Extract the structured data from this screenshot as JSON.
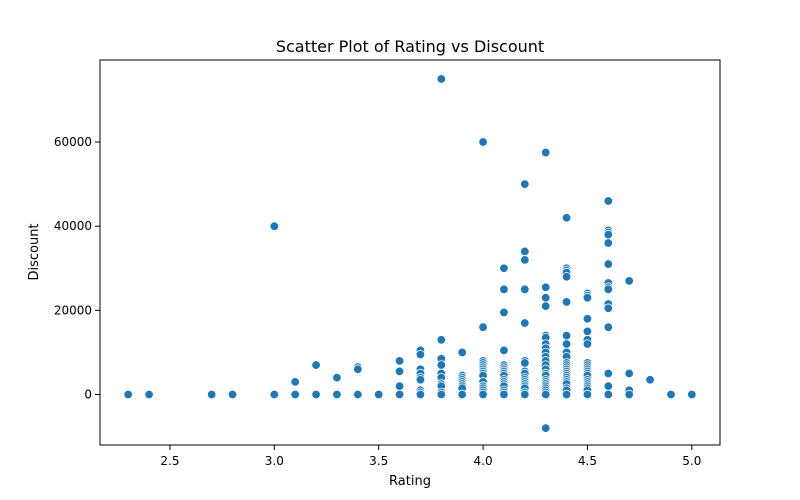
{
  "chart_data": {
    "type": "scatter",
    "title": "Scatter Plot of Rating vs Discount",
    "xlabel": "Rating",
    "ylabel": "Discount",
    "xlim": [
      2.165,
      5.135
    ],
    "ylim": [
      -12000,
      79500
    ],
    "xticks": [
      2.5,
      3.0,
      3.5,
      4.0,
      4.5,
      5.0
    ],
    "xtick_labels": [
      "2.5",
      "3.0",
      "3.5",
      "4.0",
      "4.5",
      "5.0"
    ],
    "yticks": [
      0,
      20000,
      40000,
      60000
    ],
    "ytick_labels": [
      "0",
      "20000",
      "40000",
      "60000"
    ],
    "grid": false,
    "legend": "none",
    "marker_color": "#1f77b4",
    "points": [
      [
        2.3,
        0
      ],
      [
        2.4,
        0
      ],
      [
        2.7,
        0
      ],
      [
        2.8,
        0
      ],
      [
        3.0,
        40000
      ],
      [
        3.0,
        0
      ],
      [
        3.1,
        3000
      ],
      [
        3.1,
        0
      ],
      [
        3.2,
        7000
      ],
      [
        3.2,
        0
      ],
      [
        3.3,
        4000
      ],
      [
        3.3,
        0
      ],
      [
        3.4,
        6500
      ],
      [
        3.4,
        6000
      ],
      [
        3.4,
        0
      ],
      [
        3.5,
        0
      ],
      [
        3.6,
        8000
      ],
      [
        3.6,
        5500
      ],
      [
        3.6,
        2000
      ],
      [
        3.6,
        0
      ],
      [
        3.7,
        10500
      ],
      [
        3.7,
        9500
      ],
      [
        3.7,
        6000
      ],
      [
        3.7,
        5000
      ],
      [
        3.7,
        4000
      ],
      [
        3.7,
        3500
      ],
      [
        3.7,
        1000
      ],
      [
        3.7,
        500
      ],
      [
        3.7,
        0
      ],
      [
        3.8,
        75000
      ],
      [
        3.8,
        13000
      ],
      [
        3.8,
        8500
      ],
      [
        3.8,
        7000
      ],
      [
        3.8,
        5000
      ],
      [
        3.8,
        4000
      ],
      [
        3.8,
        2500
      ],
      [
        3.8,
        2000
      ],
      [
        3.8,
        500
      ],
      [
        3.8,
        0
      ],
      [
        3.9,
        10000
      ],
      [
        3.9,
        4500
      ],
      [
        3.9,
        4000
      ],
      [
        3.9,
        3500
      ],
      [
        3.9,
        3000
      ],
      [
        3.9,
        2500
      ],
      [
        3.9,
        2000
      ],
      [
        3.9,
        1500
      ],
      [
        3.9,
        0
      ],
      [
        4.0,
        60000
      ],
      [
        4.0,
        16000
      ],
      [
        4.0,
        8000
      ],
      [
        4.0,
        7500
      ],
      [
        4.0,
        7000
      ],
      [
        4.0,
        6500
      ],
      [
        4.0,
        6000
      ],
      [
        4.0,
        5500
      ],
      [
        4.0,
        5000
      ],
      [
        4.0,
        4500
      ],
      [
        4.0,
        3000
      ],
      [
        4.0,
        2000
      ],
      [
        4.0,
        1500
      ],
      [
        4.0,
        1000
      ],
      [
        4.0,
        500
      ],
      [
        4.0,
        0
      ],
      [
        4.1,
        30000
      ],
      [
        4.1,
        25000
      ],
      [
        4.1,
        19500
      ],
      [
        4.1,
        10500
      ],
      [
        4.1,
        7000
      ],
      [
        4.1,
        6500
      ],
      [
        4.1,
        6000
      ],
      [
        4.1,
        5500
      ],
      [
        4.1,
        5000
      ],
      [
        4.1,
        4500
      ],
      [
        4.1,
        3500
      ],
      [
        4.1,
        3000
      ],
      [
        4.1,
        2500
      ],
      [
        4.1,
        2000
      ],
      [
        4.1,
        1000
      ],
      [
        4.1,
        500
      ],
      [
        4.1,
        0
      ],
      [
        4.2,
        50000
      ],
      [
        4.2,
        34000
      ],
      [
        4.2,
        32000
      ],
      [
        4.2,
        25000
      ],
      [
        4.2,
        17000
      ],
      [
        4.2,
        8000
      ],
      [
        4.2,
        7500
      ],
      [
        4.2,
        5500
      ],
      [
        4.2,
        5000
      ],
      [
        4.2,
        4000
      ],
      [
        4.2,
        3500
      ],
      [
        4.2,
        3000
      ],
      [
        4.2,
        2500
      ],
      [
        4.2,
        2000
      ],
      [
        4.2,
        1500
      ],
      [
        4.2,
        500
      ],
      [
        4.2,
        0
      ],
      [
        4.3,
        57500
      ],
      [
        4.3,
        25500
      ],
      [
        4.3,
        23000
      ],
      [
        4.3,
        21000
      ],
      [
        4.3,
        14000
      ],
      [
        4.3,
        13500
      ],
      [
        4.3,
        12000
      ],
      [
        4.3,
        11000
      ],
      [
        4.3,
        10000
      ],
      [
        4.3,
        9000
      ],
      [
        4.3,
        8000
      ],
      [
        4.3,
        7000
      ],
      [
        4.3,
        6000
      ],
      [
        4.3,
        5000
      ],
      [
        4.3,
        4500
      ],
      [
        4.3,
        3500
      ],
      [
        4.3,
        3000
      ],
      [
        4.3,
        2500
      ],
      [
        4.3,
        2000
      ],
      [
        4.3,
        1500
      ],
      [
        4.3,
        1000
      ],
      [
        4.3,
        500
      ],
      [
        4.3,
        0
      ],
      [
        4.3,
        -8000
      ],
      [
        4.4,
        42000
      ],
      [
        4.4,
        30000
      ],
      [
        4.4,
        29500
      ],
      [
        4.4,
        29000
      ],
      [
        4.4,
        28000
      ],
      [
        4.4,
        22000
      ],
      [
        4.4,
        14000
      ],
      [
        4.4,
        12000
      ],
      [
        4.4,
        10000
      ],
      [
        4.4,
        9000
      ],
      [
        4.4,
        7500
      ],
      [
        4.4,
        7000
      ],
      [
        4.4,
        6500
      ],
      [
        4.4,
        6000
      ],
      [
        4.4,
        5500
      ],
      [
        4.4,
        5000
      ],
      [
        4.4,
        4500
      ],
      [
        4.4,
        4000
      ],
      [
        4.4,
        3500
      ],
      [
        4.4,
        3000
      ],
      [
        4.4,
        2500
      ],
      [
        4.4,
        1500
      ],
      [
        4.4,
        1000
      ],
      [
        4.4,
        0
      ],
      [
        4.5,
        24000
      ],
      [
        4.5,
        23500
      ],
      [
        4.5,
        23000
      ],
      [
        4.5,
        18000
      ],
      [
        4.5,
        15000
      ],
      [
        4.5,
        13000
      ],
      [
        4.5,
        12000
      ],
      [
        4.5,
        7500
      ],
      [
        4.5,
        7000
      ],
      [
        4.5,
        6500
      ],
      [
        4.5,
        6000
      ],
      [
        4.5,
        5500
      ],
      [
        4.5,
        5000
      ],
      [
        4.5,
        4500
      ],
      [
        4.5,
        3500
      ],
      [
        4.5,
        3000
      ],
      [
        4.5,
        2500
      ],
      [
        4.5,
        2000
      ],
      [
        4.5,
        1500
      ],
      [
        4.5,
        1000
      ],
      [
        4.5,
        0
      ],
      [
        4.6,
        46000
      ],
      [
        4.6,
        39000
      ],
      [
        4.6,
        38500
      ],
      [
        4.6,
        38000
      ],
      [
        4.6,
        36000
      ],
      [
        4.6,
        31000
      ],
      [
        4.6,
        26500
      ],
      [
        4.6,
        25500
      ],
      [
        4.6,
        25000
      ],
      [
        4.6,
        21500
      ],
      [
        4.6,
        20500
      ],
      [
        4.6,
        16000
      ],
      [
        4.6,
        5000
      ],
      [
        4.6,
        2000
      ],
      [
        4.6,
        0
      ],
      [
        4.7,
        27000
      ],
      [
        4.7,
        5000
      ],
      [
        4.7,
        1000
      ],
      [
        4.7,
        0
      ],
      [
        4.8,
        3500
      ],
      [
        4.9,
        0
      ],
      [
        5.0,
        0
      ]
    ]
  }
}
